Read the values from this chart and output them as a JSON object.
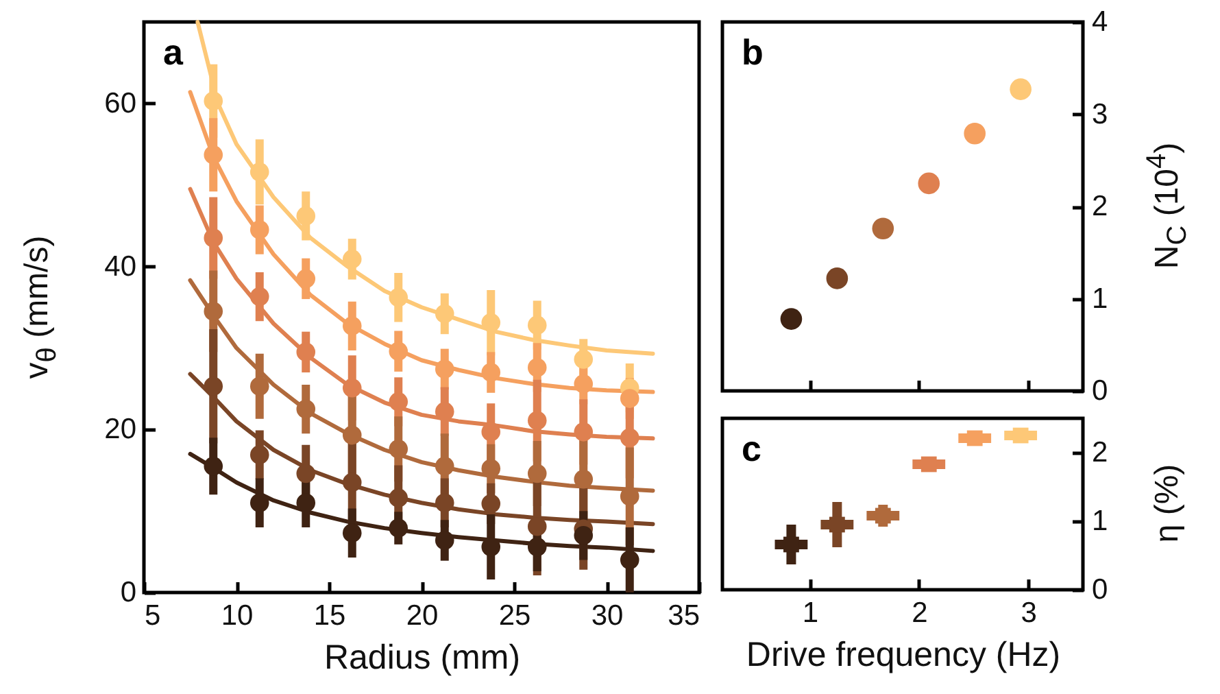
{
  "chart_data": [
    {
      "type": "scatter",
      "title": "a",
      "xlabel": "Radius (mm)",
      "ylabel": "v$_{θ}$ (mm/s)",
      "marker": "circle",
      "xlim": [
        5,
        35
      ],
      "xticks": [
        5,
        10,
        15,
        20,
        25,
        30,
        35
      ],
      "ylim": [
        0,
        70
      ],
      "yticks": [
        0,
        20,
        40,
        60
      ],
      "x": [
        8.75,
        11.25,
        13.75,
        16.25,
        18.75,
        21.25,
        23.75,
        26.25,
        28.75,
        31.25
      ],
      "series": [
        {
          "type": "line",
          "marker": "none",
          "color": "#fdc877",
          "x": [
            7.9,
            9,
            10,
            12,
            14,
            16,
            18,
            20,
            22,
            24,
            26,
            28,
            30,
            32.5
          ],
          "values": [
            70,
            60,
            55,
            48.5,
            43.5,
            40,
            37,
            35,
            33.5,
            32,
            31,
            30.3,
            29.7,
            29.3
          ]
        },
        {
          "type": "line",
          "marker": "none",
          "color": "#f5a05f",
          "x": [
            7.5,
            8.75,
            10,
            12,
            14,
            16,
            18,
            20,
            22,
            24,
            26,
            28,
            30,
            32.5
          ],
          "values": [
            61.4,
            53.5,
            48,
            41.5,
            36.5,
            33,
            30.5,
            28.5,
            27.3,
            26.3,
            25.6,
            25.1,
            24.8,
            24.6
          ]
        },
        {
          "type": "line",
          "marker": "none",
          "color": "#df8050",
          "x": [
            7.5,
            8.75,
            10,
            12,
            14,
            16,
            18,
            20,
            22,
            24,
            26,
            28,
            30,
            32.5
          ],
          "values": [
            49.5,
            43,
            38.5,
            33,
            28.8,
            25.5,
            23.3,
            21.8,
            21,
            20.5,
            19.8,
            19.4,
            19.1,
            18.9
          ]
        },
        {
          "type": "line",
          "marker": "none",
          "color": "#b06a3c",
          "x": [
            7.5,
            8.75,
            10,
            12,
            14,
            16,
            18,
            20,
            22,
            24,
            26,
            28,
            30,
            32.5
          ],
          "values": [
            38.3,
            34,
            30,
            25.5,
            22,
            19.5,
            17.5,
            16,
            15,
            14.2,
            13.6,
            13.1,
            12.8,
            12.5
          ]
        },
        {
          "type": "line",
          "marker": "none",
          "color": "#7a4526",
          "x": [
            7.5,
            8.75,
            10,
            12,
            14,
            16,
            18,
            20,
            22,
            24,
            26,
            28,
            30,
            32.5
          ],
          "values": [
            26.8,
            24,
            21,
            17.5,
            15,
            13.3,
            12,
            11,
            10.2,
            9.6,
            9.2,
            8.9,
            8.7,
            8.4
          ]
        },
        {
          "type": "line",
          "marker": "none",
          "color": "#3f2313",
          "x": [
            7.5,
            8.75,
            10,
            12,
            14,
            16,
            18,
            20,
            22,
            24,
            26,
            28,
            30,
            32.5
          ],
          "values": [
            17,
            15.3,
            13.5,
            11.3,
            9.8,
            8.7,
            7.9,
            7.3,
            6.8,
            6.4,
            6,
            5.7,
            5.5,
            5.1
          ]
        },
        {
          "color": "#fdc877",
          "values": [
            60.3,
            51.6,
            46.2,
            40.9,
            36.2,
            34.2,
            33.1,
            32.8,
            28.6,
            25.1
          ],
          "errors": [
            4.5,
            4,
            3,
            2.5,
            3,
            2.5,
            4,
            3,
            2.5,
            3
          ]
        },
        {
          "color": "#f5a05f",
          "values": [
            53.7,
            44.5,
            38.5,
            32.7,
            29.6,
            27.4,
            27,
            27.6,
            25.6,
            23.8
          ],
          "errors": [
            4.5,
            3,
            2.5,
            3,
            2.5,
            2.5,
            2.5,
            3,
            2.5,
            2.5
          ]
        },
        {
          "color": "#df8050",
          "values": [
            43.5,
            36.3,
            29.5,
            25.1,
            23.4,
            22.2,
            19.7,
            21.1,
            19.7,
            19
          ],
          "errors": [
            5,
            3,
            2.5,
            4,
            3,
            3,
            3.5,
            5,
            4,
            5
          ]
        },
        {
          "color": "#b06a3c",
          "values": [
            34.5,
            25.3,
            22.5,
            19.3,
            17.6,
            15.5,
            15.2,
            14.6,
            13.9,
            11.8
          ],
          "errors": [
            5,
            4,
            3,
            5,
            4,
            4,
            3,
            4,
            5,
            6
          ]
        },
        {
          "color": "#7a4526",
          "values": [
            25.3,
            16.9,
            14.6,
            13.5,
            11.6,
            11,
            10.9,
            8.1,
            7.8,
            null
          ],
          "errors": [
            7,
            3,
            3.5,
            5,
            4,
            3,
            2.5,
            6,
            5,
            null
          ]
        },
        {
          "color": "#3f2313",
          "values": [
            15.5,
            11,
            11,
            7.3,
            7.9,
            6.4,
            5.6,
            5.6,
            7,
            4
          ],
          "errors": [
            3.5,
            3,
            3,
            3,
            2,
            2.5,
            4,
            3,
            3,
            4
          ]
        }
      ]
    },
    {
      "type": "scatter",
      "title": "b",
      "ylabel": "N$_{C}$ (10$^{4}$)",
      "marker": "circle",
      "tick_labels": "y",
      "xlim": [
        0.2,
        3.5
      ],
      "xticks": [
        1,
        2,
        3
      ],
      "ylim": [
        0,
        4
      ],
      "yticks": [
        0,
        1,
        2,
        3,
        4
      ],
      "x": [
        0.83,
        1.25,
        1.67,
        2.09,
        2.51,
        2.93
      ],
      "values": [
        0.78,
        1.22,
        1.76,
        2.25,
        2.79,
        3.27
      ],
      "colors": [
        "#3f2313",
        "#7a4526",
        "#b06a3c",
        "#df8050",
        "#f5a05f",
        "#fdc877"
      ]
    },
    {
      "type": "scatter",
      "title": "c",
      "xlabel": "Drive frequency (Hz)",
      "ylabel": "η (%)",
      "marker": "square",
      "xlim": [
        0.2,
        3.5
      ],
      "xticks": [
        1,
        2,
        3
      ],
      "ylim": [
        0,
        2.5
      ],
      "yticks": [
        0,
        1,
        2
      ],
      "x": [
        0.83,
        1.25,
        1.67,
        2.09,
        2.51,
        2.93
      ],
      "values": [
        0.66,
        0.95,
        1.08,
        1.83,
        2.21,
        2.25
      ],
      "errors": [
        0.29,
        0.33,
        0.16,
        0.1,
        0.05,
        0.1
      ],
      "xerrors": [
        0.15,
        0.15,
        0.15,
        0.15,
        0.15,
        0.15
      ],
      "colors": [
        "#3f2313",
        "#7a4526",
        "#b06a3c",
        "#df8050",
        "#f5a05f",
        "#fdc877"
      ]
    }
  ]
}
